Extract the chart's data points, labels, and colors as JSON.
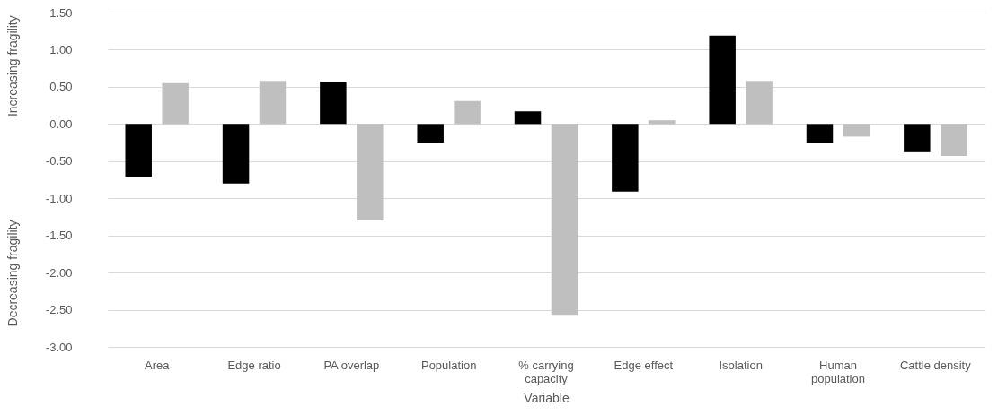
{
  "chart_data": {
    "type": "bar",
    "xlabel": "Variable",
    "ylabel": "Increasing fragility",
    "annotations": [
      "Decreasing fragility"
    ],
    "categories": [
      "Area",
      "Edge ratio",
      "PA overlap",
      "Population",
      "% carrying capacity",
      "Edge effect",
      "Isolation",
      "Human population",
      "Cattle density"
    ],
    "series": [
      {
        "color": "#000000",
        "values": [
          -0.71,
          -0.8,
          0.57,
          -0.25,
          0.17,
          -0.91,
          1.19,
          -0.26,
          -0.38
        ]
      },
      {
        "color": "#bfbfbf",
        "values": [
          0.55,
          0.58,
          -1.3,
          0.31,
          -2.57,
          0.05,
          0.58,
          -0.17,
          -0.43
        ]
      }
    ],
    "ylim": [
      -3.0,
      1.5
    ],
    "yticks": [
      {
        "value": -3.0,
        "label": "-3.00"
      },
      {
        "value": -2.5,
        "label": "-2.50"
      },
      {
        "value": -2.0,
        "label": "-2.00"
      },
      {
        "value": -1.5,
        "label": "-1.50"
      },
      {
        "value": -1.0,
        "label": "-1.00"
      },
      {
        "value": -0.5,
        "label": "-0.50"
      },
      {
        "value": 0.0,
        "label": "0.00"
      },
      {
        "value": 0.5,
        "label": "0.50"
      },
      {
        "value": 1.0,
        "label": "1.00"
      },
      {
        "value": 1.5,
        "label": "1.50"
      }
    ],
    "grid": "y",
    "legend": false
  }
}
